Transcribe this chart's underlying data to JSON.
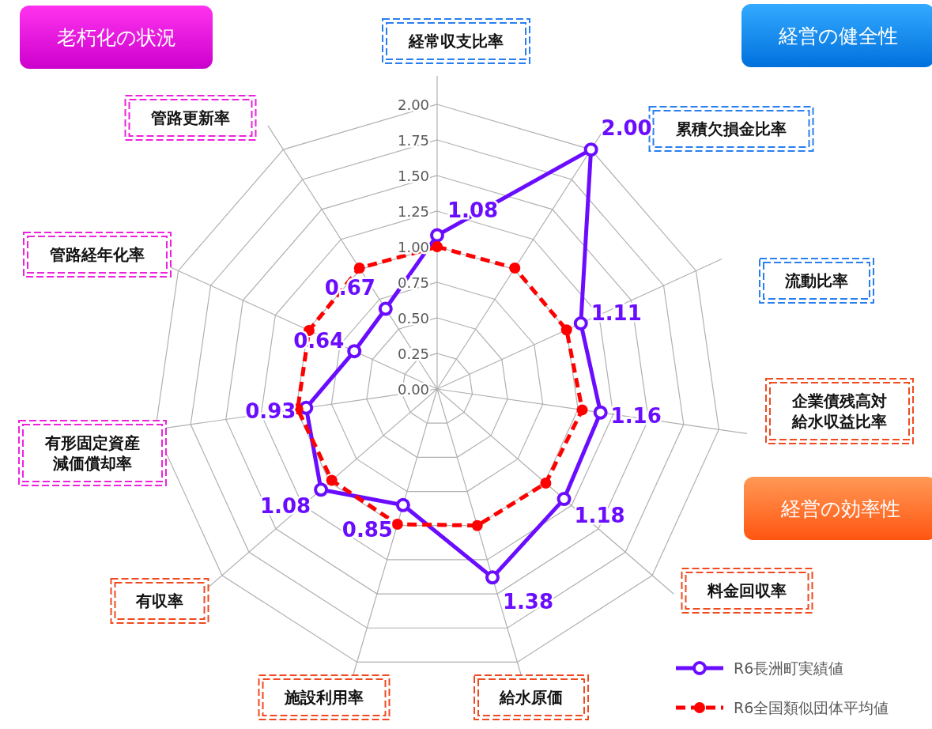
{
  "chart_data": {
    "type": "radar",
    "categories": [
      "経常収支比率",
      "累積欠損金比率",
      "流動比率",
      "企業債残高対給水収益比率",
      "料金回収率",
      "給水原価",
      "施設利用率",
      "有収率",
      "有形固定資産減価償却率",
      "管路経年化率",
      "管路更新率"
    ],
    "series": [
      {
        "name": "R6長洲町実績値",
        "color": "#6a0dff",
        "marker": "circle",
        "line_style": "solid",
        "values": [
          1.08,
          2.0,
          1.11,
          1.16,
          1.18,
          1.38,
          0.85,
          1.08,
          0.93,
          0.64,
          0.67
        ],
        "value_labels": [
          "1.08",
          "2.00",
          "1.11",
          "1.16",
          "1.18",
          "1.38",
          "0.85",
          "1.08",
          "0.93",
          "0.64",
          "0.67"
        ]
      },
      {
        "name": "R6全国類似団体平均値",
        "color": "#ff0000",
        "marker": "circle",
        "line_style": "dashed",
        "values": [
          1.0,
          1.01,
          1.0,
          1.03,
          1.01,
          1.0,
          0.99,
          0.98,
          0.99,
          0.99,
          1.01
        ]
      }
    ],
    "ylim": [
      0,
      2
    ],
    "yticks": [
      {
        "value": 0,
        "label": "0.00"
      },
      {
        "value": 0.25,
        "label": "0.25"
      },
      {
        "value": 0.5,
        "label": "0.50"
      },
      {
        "value": 0.75,
        "label": "0.75"
      },
      {
        "value": 1,
        "label": "1.00"
      },
      {
        "value": 1.25,
        "label": "1.25"
      },
      {
        "value": 1.5,
        "label": "1.50"
      },
      {
        "value": 1.75,
        "label": "1.75"
      },
      {
        "value": 2,
        "label": "2.00"
      }
    ],
    "grid": true,
    "legend": "bottom right",
    "annotations": [
      "老朽化の状況",
      "経営の健全性",
      "経営の効率性"
    ]
  }
}
